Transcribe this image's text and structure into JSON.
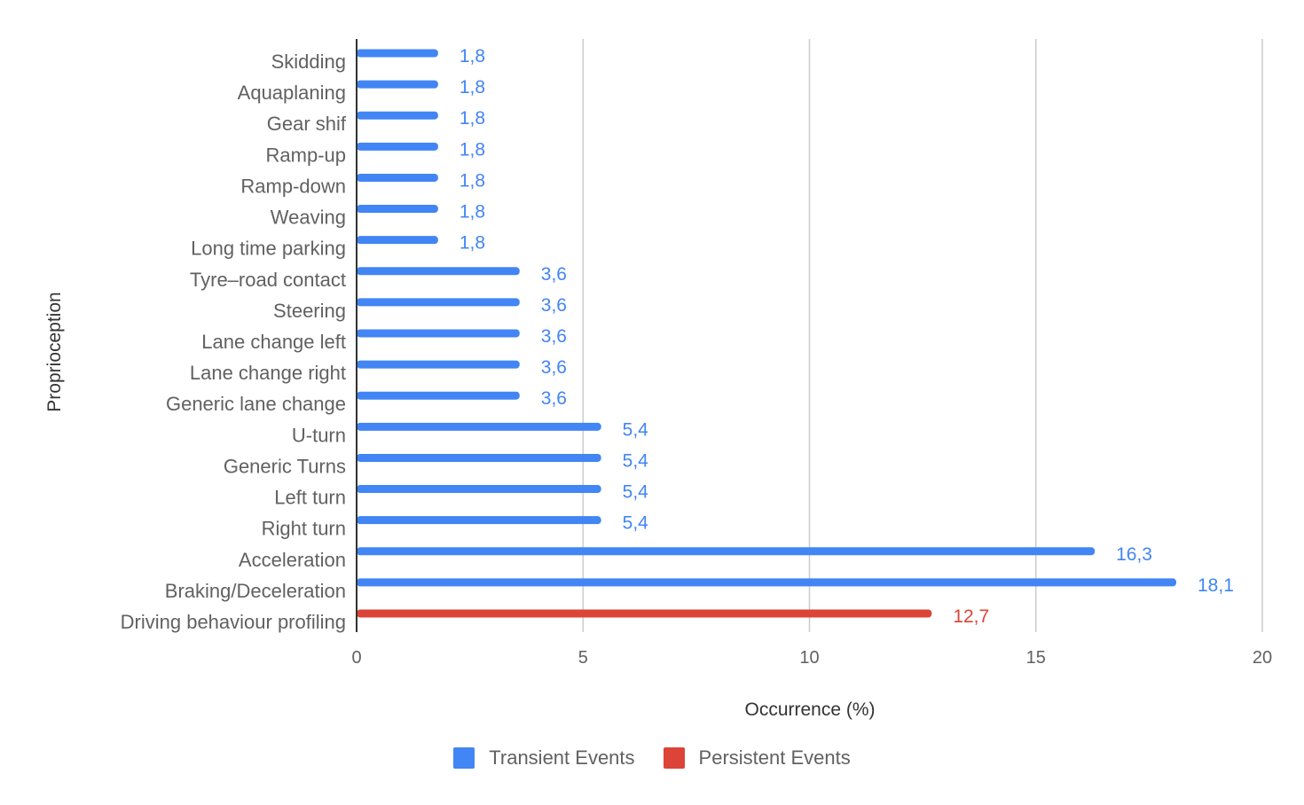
{
  "chart_data": {
    "type": "bar",
    "orientation": "horizontal",
    "ylabel": "Proprioception",
    "xlabel": "Occurrence (%)",
    "xlim": [
      0,
      20
    ],
    "xticks": [
      0,
      5,
      10,
      15,
      20
    ],
    "grid": true,
    "legend_position": "bottom",
    "categories": [
      "Skidding",
      "Aquaplaning",
      "Gear shif",
      "Ramp-up",
      "Ramp-down",
      "Weaving",
      "Long time parking",
      "Tyre–road contact",
      "Steering",
      "Lane change left",
      "Lane change right",
      "Generic lane change",
      "U-turn",
      "Generic Turns",
      "Left turn",
      "Right turn",
      "Acceleration",
      "Braking/Deceleration",
      "Driving behaviour profiling"
    ],
    "series": [
      {
        "name": "Transient Events",
        "color": "#4285f4",
        "values": [
          1.8,
          1.8,
          1.8,
          1.8,
          1.8,
          1.8,
          1.8,
          3.6,
          3.6,
          3.6,
          3.6,
          3.6,
          5.4,
          5.4,
          5.4,
          5.4,
          16.3,
          18.1,
          null
        ],
        "labels": [
          "1,8",
          "1,8",
          "1,8",
          "1,8",
          "1,8",
          "1,8",
          "1,8",
          "3,6",
          "3,6",
          "3,6",
          "3,6",
          "3,6",
          "5,4",
          "5,4",
          "5,4",
          "5,4",
          "16,3",
          "18,1",
          null
        ]
      },
      {
        "name": "Persistent Events",
        "color": "#db4437",
        "values": [
          null,
          null,
          null,
          null,
          null,
          null,
          null,
          null,
          null,
          null,
          null,
          null,
          null,
          null,
          null,
          null,
          null,
          null,
          12.7
        ],
        "labels": [
          null,
          null,
          null,
          null,
          null,
          null,
          null,
          null,
          null,
          null,
          null,
          null,
          null,
          null,
          null,
          null,
          null,
          null,
          "12,7"
        ]
      }
    ]
  }
}
